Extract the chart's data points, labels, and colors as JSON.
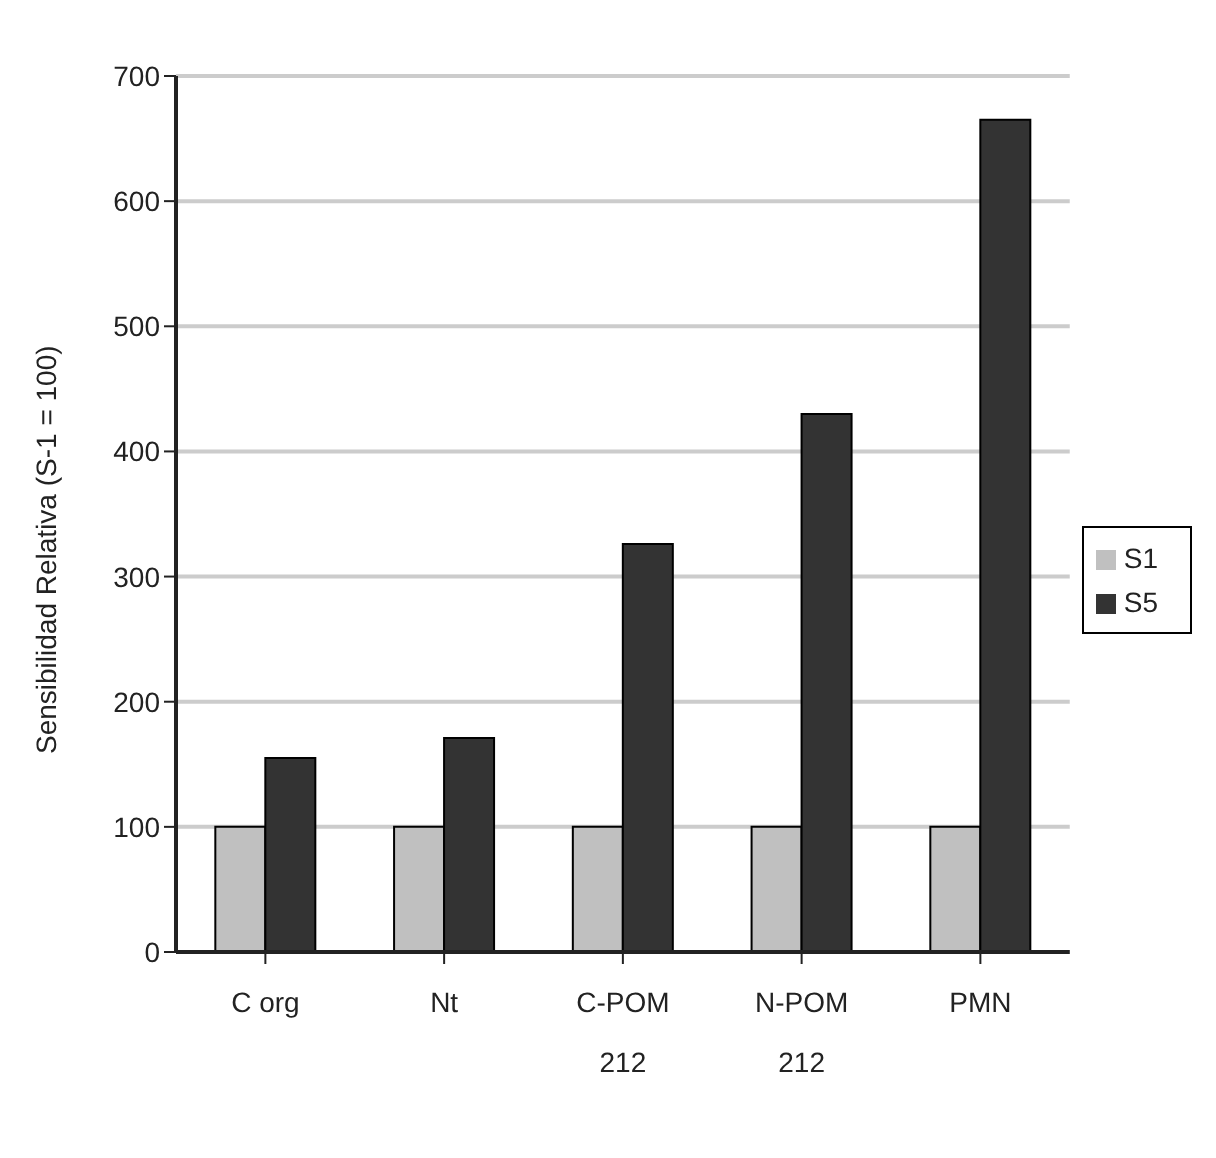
{
  "chart_data": {
    "type": "bar",
    "ylabel": "Sensibilidad Relativa (S-1 = 100)",
    "categories": [
      "C org",
      "Nt",
      "C-POM\n212",
      "N-POM\n212",
      "PMN"
    ],
    "series": [
      {
        "name": "S1",
        "color": "#c0c0c0",
        "values": [
          100,
          100,
          100,
          100,
          100
        ]
      },
      {
        "name": "S5",
        "color": "#333333",
        "values": [
          155,
          171,
          326,
          430,
          665
        ]
      }
    ],
    "ylim": [
      0,
      700
    ],
    "yticks": [
      0,
      100,
      200,
      300,
      400,
      500,
      600,
      700
    ],
    "grid": "y",
    "legend": "right"
  }
}
